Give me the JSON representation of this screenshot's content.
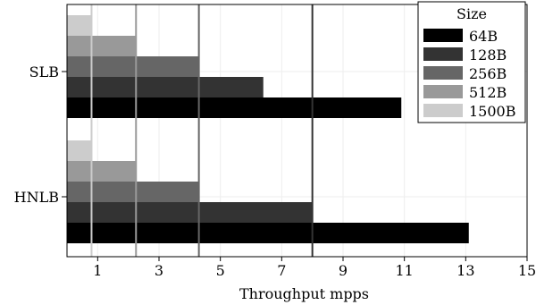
{
  "chart_data": {
    "type": "bar",
    "orientation": "horizontal",
    "categories": [
      "SLB",
      "HNLB"
    ],
    "series": [
      {
        "name": "64B",
        "color": "#000000",
        "values": [
          10.9,
          13.1
        ]
      },
      {
        "name": "128B",
        "color": "#333333",
        "values": [
          6.4,
          8.0
        ]
      },
      {
        "name": "256B",
        "color": "#666666",
        "values": [
          4.3,
          4.3
        ]
      },
      {
        "name": "512B",
        "color": "#999999",
        "values": [
          2.25,
          2.25
        ]
      },
      {
        "name": "1500B",
        "color": "#cccccc",
        "values": [
          0.8,
          0.8
        ]
      }
    ],
    "reference_lines": [
      {
        "value": 0.8,
        "color": "#cccccc"
      },
      {
        "value": 2.25,
        "color": "#999999"
      },
      {
        "value": 4.3,
        "color": "#666666"
      },
      {
        "value": 8.0,
        "color": "#333333"
      }
    ],
    "xlabel": "Throughput mpps",
    "ylabel": "",
    "xlim": [
      0,
      15
    ],
    "xticks": [
      1,
      3,
      5,
      7,
      9,
      11,
      13,
      15
    ],
    "grid": true,
    "legend": {
      "title": "Size",
      "position": "top-right"
    }
  }
}
